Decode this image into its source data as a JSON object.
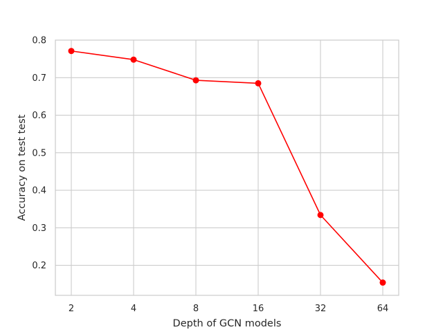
{
  "chart_data": {
    "type": "line",
    "title": "",
    "xlabel": "Depth of GCN models",
    "ylabel": "Accuracy on test test",
    "categories": [
      "2",
      "4",
      "8",
      "16",
      "32",
      "64"
    ],
    "series": [
      {
        "values": [
          0.771,
          0.748,
          0.693,
          0.685,
          0.334,
          0.154
        ],
        "color": "#ff0000",
        "marker": "circle"
      }
    ],
    "ylim": [
      0.12,
      0.8
    ],
    "yticks": [
      "0.2",
      "0.3",
      "0.4",
      "0.5",
      "0.6",
      "0.7",
      "0.8"
    ],
    "grid": true,
    "legend": "none"
  }
}
